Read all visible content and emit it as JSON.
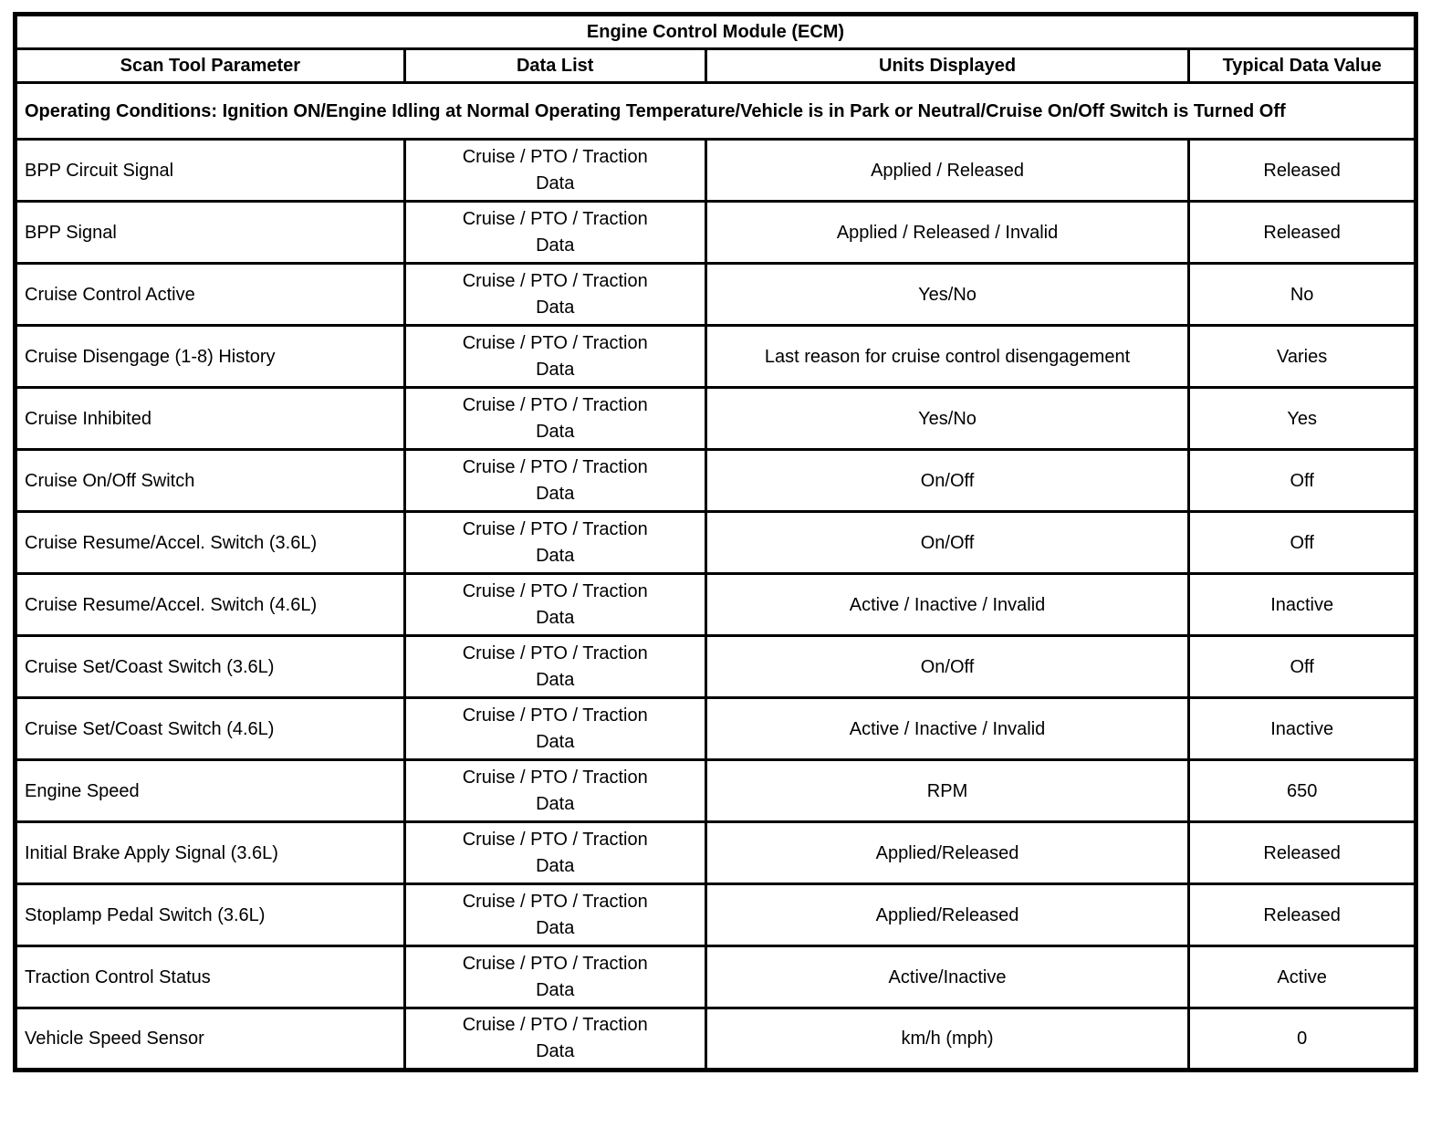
{
  "table": {
    "title": "Engine Control Module (ECM)",
    "columns": [
      "Scan Tool Parameter",
      "Data List",
      "Units Displayed",
      "Typical Data Value"
    ],
    "operating_conditions": "Operating Conditions: Ignition ON/Engine Idling at Normal Operating Temperature/Vehicle is in Park or Neutral/Cruise On/Off Switch is Turned Off",
    "rows": [
      {
        "parameter": "BPP Circuit Signal",
        "data_list": "Cruise / PTO / Traction Data",
        "units": "Applied / Released",
        "value": "Released"
      },
      {
        "parameter": "BPP Signal",
        "data_list": "Cruise / PTO / Traction Data",
        "units": "Applied / Released / Invalid",
        "value": "Released"
      },
      {
        "parameter": "Cruise Control Active",
        "data_list": "Cruise / PTO / Traction Data",
        "units": "Yes/No",
        "value": "No"
      },
      {
        "parameter": "Cruise Disengage (1-8) History",
        "data_list": "Cruise / PTO / Traction Data",
        "units": "Last reason for cruise control disengagement",
        "value": "Varies"
      },
      {
        "parameter": "Cruise Inhibited",
        "data_list": "Cruise / PTO / Traction Data",
        "units": "Yes/No",
        "value": "Yes"
      },
      {
        "parameter": "Cruise On/Off Switch",
        "data_list": "Cruise / PTO / Traction Data",
        "units": "On/Off",
        "value": "Off"
      },
      {
        "parameter": "Cruise Resume/Accel. Switch (3.6L)",
        "data_list": "Cruise / PTO / Traction Data",
        "units": "On/Off",
        "value": "Off"
      },
      {
        "parameter": "Cruise Resume/Accel. Switch (4.6L)",
        "data_list": "Cruise / PTO / Traction Data",
        "units": "Active / Inactive / Invalid",
        "value": "Inactive"
      },
      {
        "parameter": "Cruise Set/Coast Switch (3.6L)",
        "data_list": "Cruise / PTO / Traction Data",
        "units": "On/Off",
        "value": "Off"
      },
      {
        "parameter": "Cruise Set/Coast Switch (4.6L)",
        "data_list": "Cruise / PTO / Traction Data",
        "units": "Active / Inactive / Invalid",
        "value": "Inactive"
      },
      {
        "parameter": "Engine Speed",
        "data_list": "Cruise / PTO / Traction Data",
        "units": "RPM",
        "value": "650"
      },
      {
        "parameter": "Initial Brake Apply Signal (3.6L)",
        "data_list": "Cruise / PTO / Traction Data",
        "units": "Applied/Released",
        "value": "Released"
      },
      {
        "parameter": "Stoplamp Pedal Switch (3.6L)",
        "data_list": "Cruise / PTO / Traction Data",
        "units": "Applied/Released",
        "value": "Released"
      },
      {
        "parameter": "Traction Control Status",
        "data_list": "Cruise / PTO / Traction Data",
        "units": "Active/Inactive",
        "value": "Active"
      },
      {
        "parameter": "Vehicle Speed Sensor",
        "data_list": "Cruise / PTO / Traction Data",
        "units": "km/h (mph)",
        "value": "0"
      }
    ]
  }
}
